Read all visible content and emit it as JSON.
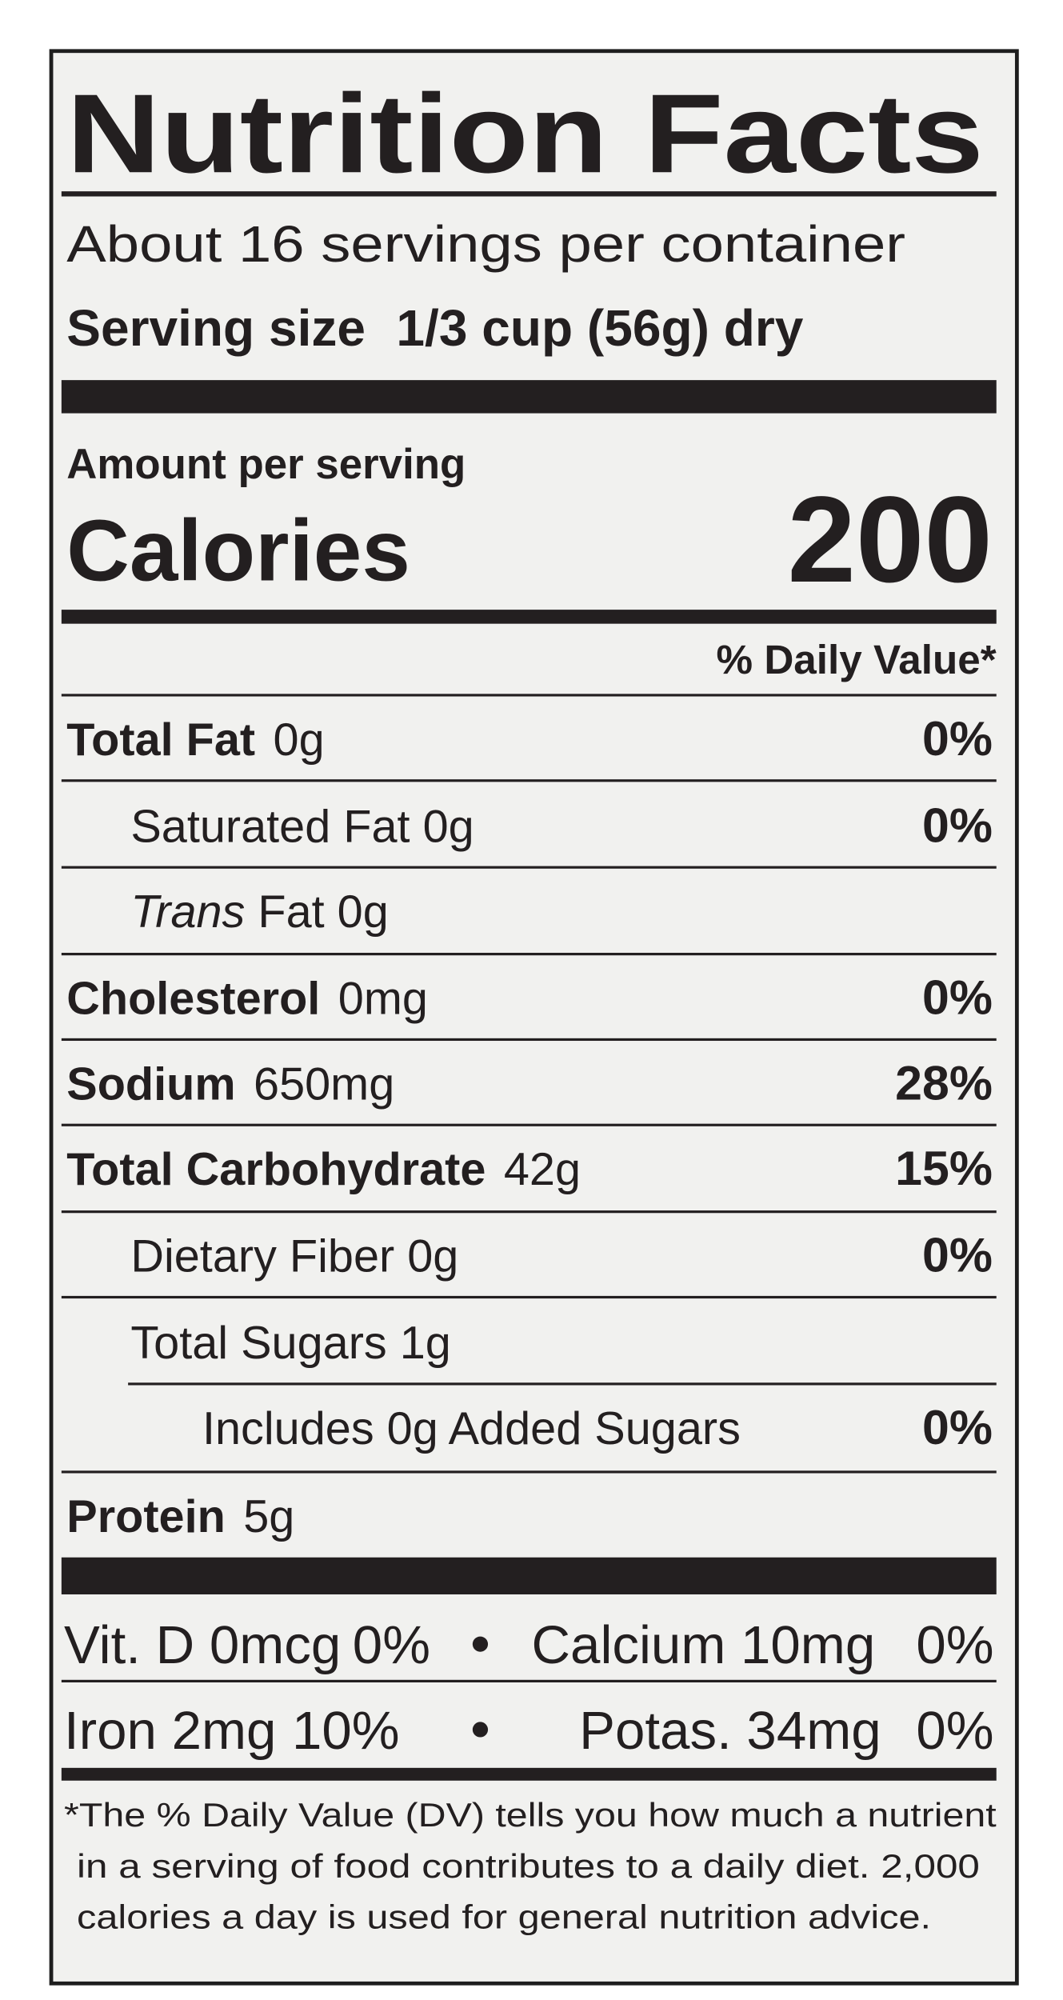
{
  "title": "Nutrition Facts",
  "servings": "About 16 servings per container",
  "serving_size": {
    "label": "Serving size",
    "value": "1/3 cup (56g) dry"
  },
  "amount_per_serving": "Amount per serving",
  "calories": {
    "label": "Calories",
    "value": "200"
  },
  "daily_value_header": "% Daily Value*",
  "nutrients": [
    {
      "name": "Total Fat",
      "amount": "0g",
      "dv": "0%"
    },
    {
      "name": "Saturated Fat",
      "amount": "0g",
      "dv": "0%"
    },
    {
      "name_italic": "Trans",
      "name": "Fat",
      "amount": "0g"
    },
    {
      "name": "Cholesterol",
      "amount": "0mg",
      "dv": "0%"
    },
    {
      "name": "Sodium",
      "amount": "650mg",
      "dv": "28%"
    },
    {
      "name": "Total Carbohydrate",
      "amount": "42g",
      "dv": "15%"
    },
    {
      "name": "Dietary Fiber",
      "amount": "0g",
      "dv": "0%"
    },
    {
      "name": "Total Sugars",
      "amount": "1g"
    },
    {
      "name": "Includes 0g Added Sugars",
      "dv": "0%"
    },
    {
      "name": "Protein",
      "amount": "5g"
    }
  ],
  "vitamins": [
    [
      {
        "name": "Vit. D 0mcg",
        "dv": "0%"
      },
      {
        "name": "Calcium 10mg",
        "dv": "0%"
      }
    ],
    [
      {
        "name": "Iron 2mg",
        "dv": "10%"
      },
      {
        "name": "Potas. 34mg",
        "dv": "0%"
      }
    ]
  ],
  "footnote": [
    "*The % Daily Value (DV) tells you how much a nutrient",
    "in a serving of food contributes to a daily diet. 2,000",
    "calories a day is used for general nutrition advice."
  ]
}
